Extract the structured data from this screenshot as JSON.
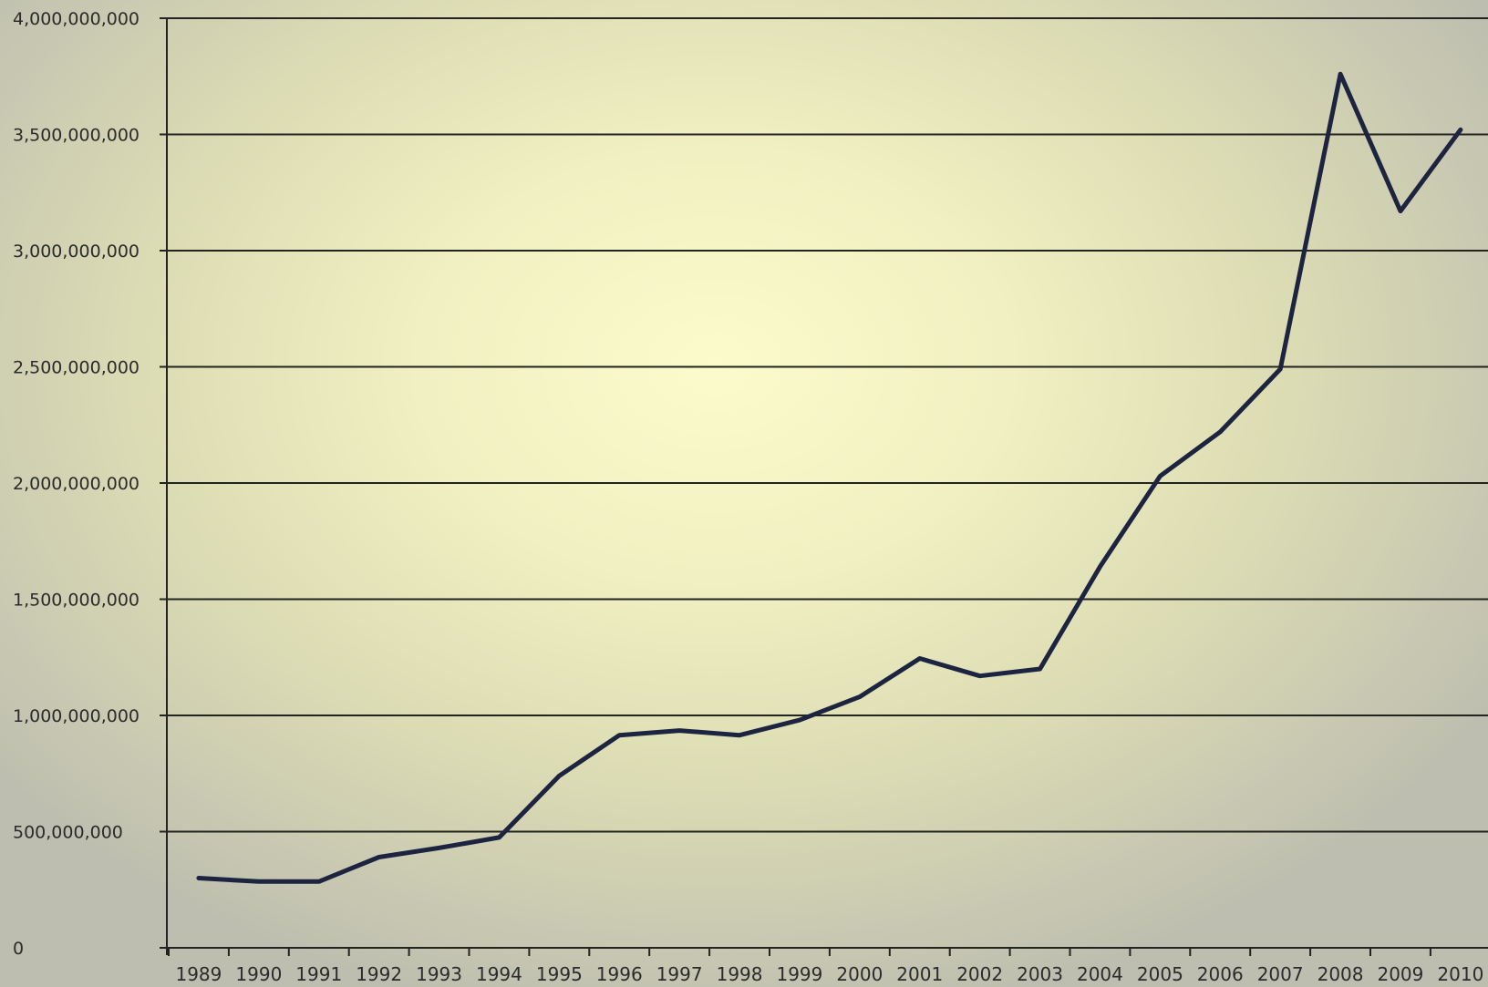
{
  "chart_data": {
    "type": "line",
    "title": "",
    "xlabel": "",
    "ylabel": "",
    "x": [
      "1989",
      "1990",
      "1991",
      "1992",
      "1993",
      "1994",
      "1995",
      "1996",
      "1997",
      "1998",
      "1999",
      "2000",
      "2001",
      "2002",
      "2003",
      "2004",
      "2005",
      "2006",
      "2007",
      "2008",
      "2009",
      "2010"
    ],
    "series": [
      {
        "values": [
          300000000,
          285000000,
          285000000,
          390000000,
          430000000,
          475000000,
          740000000,
          915000000,
          935000000,
          915000000,
          980000000,
          1080000000,
          1245000000,
          1170000000,
          1200000000,
          1640000000,
          2030000000,
          2220000000,
          2490000000,
          3760000000,
          3170000000,
          3520000000
        ]
      }
    ],
    "ylim": [
      0,
      4000000000
    ],
    "yticks": [
      0,
      500000000,
      1000000000,
      1500000000,
      2000000000,
      2500000000,
      3000000000,
      3500000000,
      4000000000
    ],
    "ytick_labels": [
      "0",
      "500,000,000",
      "1,000,000,000",
      "1,500,000,000",
      "2,000,000,000",
      "2,500,000,000",
      "3,000,000,000",
      "3,500,000,000",
      "4,000,000,000"
    ],
    "grid": true,
    "legend": "none",
    "colors": {
      "line": "#1d2440",
      "grid": "#23231f",
      "text": "#2b2b2b"
    }
  }
}
